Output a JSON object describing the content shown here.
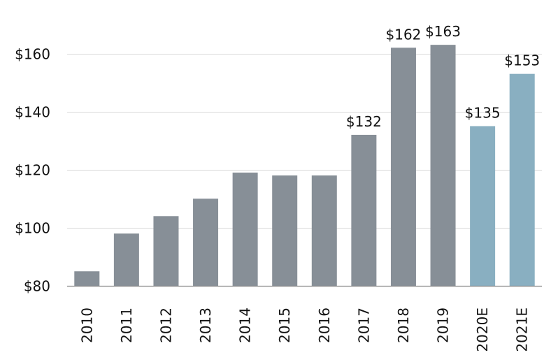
{
  "chart_data": {
    "type": "bar",
    "title": "",
    "xlabel": "",
    "ylabel": "",
    "categories": [
      "2010",
      "2011",
      "2012",
      "2013",
      "2014",
      "2015",
      "2016",
      "2017",
      "2018",
      "2019",
      "2020E",
      "2021E"
    ],
    "values": [
      85,
      98,
      104,
      110,
      119,
      118,
      118,
      132,
      162,
      163,
      135,
      153
    ],
    "estimated": [
      false,
      false,
      false,
      false,
      false,
      false,
      false,
      false,
      false,
      false,
      true,
      true
    ],
    "data_labels": [
      "",
      "",
      "",
      "",
      "",
      "",
      "",
      "$132",
      "$162",
      "$163",
      "$135",
      "$153"
    ],
    "ylim": [
      80,
      170
    ],
    "yticks": [
      80,
      100,
      120,
      140,
      160
    ],
    "ytick_labels": [
      "$80",
      "$100",
      "$120",
      "$140",
      "$160"
    ],
    "grid": true,
    "colors": {
      "actual": "#878f97",
      "estimate": "#89afc1"
    }
  }
}
